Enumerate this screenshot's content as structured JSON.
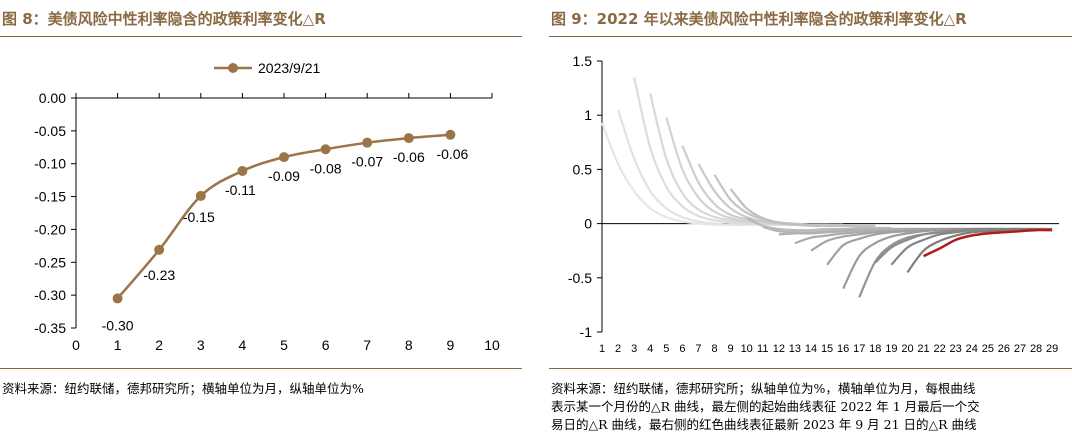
{
  "left": {
    "title": "图 8：美债风险中性利率隐含的政策利率变化△R",
    "source": "资料来源：纽约联储，德邦研究所；横轴单位为月，纵轴单位为%",
    "accent_color": "#8a6a43",
    "line_color": "#9b7448",
    "chart_data": {
      "type": "line",
      "title": "",
      "xlabel": "",
      "ylabel": "",
      "x": [
        1,
        2,
        3,
        4,
        5,
        6,
        7,
        8,
        9
      ],
      "xlim": [
        0,
        10
      ],
      "ylim": [
        -0.35,
        0.0
      ],
      "xticks": [
        "0",
        "1",
        "2",
        "3",
        "4",
        "5",
        "6",
        "7",
        "8",
        "9",
        "10"
      ],
      "yticks": [
        "0.00",
        "-0.05",
        "-0.10",
        "-0.15",
        "-0.20",
        "-0.25",
        "-0.30",
        "-0.35"
      ],
      "legend_position": "top-center",
      "series": [
        {
          "name": "2023/9/21",
          "values": [
            -0.305,
            -0.231,
            -0.149,
            -0.111,
            -0.09,
            -0.078,
            -0.068,
            -0.061,
            -0.056
          ],
          "data_labels": [
            "-0.30",
            "-0.23",
            "-0.15",
            "-0.11",
            "-0.09",
            "-0.08",
            "-0.07",
            "-0.06",
            "-0.06"
          ]
        }
      ],
      "grid": false
    }
  },
  "right": {
    "title": "图 9：2022 年以来美债风险中性利率隐含的政策利率变化△R",
    "source_lines": [
      "资料来源：纽约联储，德邦研究所；纵轴单位为%，横轴单位为月，每根曲线",
      "表示某一个月份的△R 曲线，最左侧的起始曲线表征 2022 年 1 月最后一个交",
      "易日的△R 曲线，最右侧的红色曲线表征最新 2023 年 9 月 21 日的△R 曲线"
    ],
    "highlight_color": "#b01c1c",
    "chart_data": {
      "type": "line",
      "title": "",
      "xlabel": "",
      "ylabel": "",
      "xlim": [
        1,
        29
      ],
      "ylim": [
        -1,
        1.5
      ],
      "xticks": [
        "1",
        "2",
        "3",
        "4",
        "5",
        "6",
        "7",
        "8",
        "9",
        "10",
        "11",
        "12",
        "13",
        "14",
        "15",
        "16",
        "17",
        "18",
        "19",
        "20",
        "21",
        "22",
        "23",
        "24",
        "25",
        "26",
        "27",
        "28",
        "29"
      ],
      "yticks": [
        "1.5",
        "1",
        "0.5",
        "0",
        "-0.5",
        "-1"
      ],
      "grid": false,
      "legend_position": "none",
      "series": [
        {
          "start": 1,
          "values": [
            0.93,
            0.55,
            0.3,
            0.14,
            0.06,
            0.02,
            0.0,
            -0.01,
            -0.01,
            -0.01
          ],
          "color": "#e6e6e6"
        },
        {
          "start": 2,
          "values": [
            1.05,
            0.6,
            0.3,
            0.14,
            0.06,
            0.02,
            0.0,
            -0.01,
            -0.01,
            -0.01
          ],
          "color": "#e2e2e2"
        },
        {
          "start": 3,
          "values": [
            1.35,
            0.7,
            0.34,
            0.16,
            0.07,
            0.03,
            0.01,
            0.0,
            -0.01,
            -0.01
          ],
          "color": "#dddddd"
        },
        {
          "start": 4,
          "values": [
            1.2,
            0.6,
            0.28,
            0.13,
            0.06,
            0.03,
            0.01,
            0.0,
            -0.01,
            -0.01
          ],
          "color": "#d8d8d8"
        },
        {
          "start": 5,
          "values": [
            0.98,
            0.5,
            0.24,
            0.11,
            0.05,
            0.02,
            0.01,
            0.0,
            -0.01,
            -0.01
          ],
          "color": "#d3d3d3"
        },
        {
          "start": 6,
          "values": [
            0.72,
            0.38,
            0.18,
            0.08,
            0.04,
            0.02,
            0.0,
            -0.01,
            -0.01,
            -0.01
          ],
          "color": "#cecece"
        },
        {
          "start": 7,
          "values": [
            0.55,
            0.3,
            0.14,
            0.06,
            0.02,
            0.0,
            -0.01,
            -0.01,
            -0.01,
            -0.01
          ],
          "color": "#c9c9c9"
        },
        {
          "start": 8,
          "values": [
            0.45,
            0.22,
            0.1,
            0.04,
            0.01,
            0.0,
            -0.01,
            -0.02,
            -0.02,
            -0.02
          ],
          "color": "#c4c4c4"
        },
        {
          "start": 9,
          "values": [
            0.32,
            0.14,
            0.05,
            0.01,
            -0.01,
            -0.02,
            -0.02,
            -0.02,
            -0.02,
            -0.02
          ],
          "color": "#bfbfbf"
        },
        {
          "start": 10,
          "values": [
            0.05,
            -0.02,
            -0.05,
            -0.06,
            -0.06,
            -0.05,
            -0.05,
            -0.04,
            -0.04,
            -0.04
          ],
          "color": "#bababa"
        },
        {
          "start": 11,
          "values": [
            -0.03,
            -0.07,
            -0.08,
            -0.08,
            -0.07,
            -0.06,
            -0.06,
            -0.05,
            -0.05,
            -0.05
          ],
          "color": "#b5b5b5"
        },
        {
          "start": 12,
          "values": [
            -0.1,
            -0.09,
            -0.09,
            -0.08,
            -0.07,
            -0.06,
            -0.06,
            -0.05,
            -0.05,
            -0.05
          ],
          "color": "#b0b0b0"
        },
        {
          "start": 13,
          "values": [
            -0.18,
            -0.13,
            -0.11,
            -0.09,
            -0.08,
            -0.07,
            -0.06,
            -0.05,
            -0.05,
            -0.05
          ],
          "color": "#ababab"
        },
        {
          "start": 14,
          "values": [
            -0.25,
            -0.16,
            -0.12,
            -0.1,
            -0.08,
            -0.07,
            -0.06,
            -0.05,
            -0.05,
            -0.05
          ],
          "color": "#a6a6a6"
        },
        {
          "start": 15,
          "values": [
            -0.38,
            -0.2,
            -0.14,
            -0.1,
            -0.08,
            -0.07,
            -0.06,
            -0.05,
            -0.05,
            -0.05
          ],
          "color": "#a0a0a0"
        },
        {
          "start": 16,
          "values": [
            -0.6,
            -0.3,
            -0.18,
            -0.12,
            -0.09,
            -0.07,
            -0.06,
            -0.05,
            -0.05,
            -0.05
          ],
          "color": "#9a9a9a"
        },
        {
          "start": 17,
          "values": [
            -0.68,
            -0.35,
            -0.2,
            -0.13,
            -0.1,
            -0.08,
            -0.06,
            -0.05,
            -0.05,
            -0.05
          ],
          "color": "#939393"
        },
        {
          "start": 18,
          "values": [
            -0.36,
            -0.22,
            -0.15,
            -0.1,
            -0.08,
            -0.06,
            -0.05,
            -0.05,
            -0.05,
            -0.05
          ],
          "color": "#8c8c8c"
        },
        {
          "start": 19,
          "values": [
            -0.38,
            -0.22,
            -0.15,
            -0.1,
            -0.08,
            -0.06,
            -0.05,
            -0.05,
            -0.05,
            -0.05
          ],
          "color": "#858585"
        },
        {
          "start": 20,
          "values": [
            -0.45,
            -0.25,
            -0.16,
            -0.11,
            -0.08,
            -0.07,
            -0.06,
            -0.05,
            -0.05,
            -0.05
          ],
          "color": "#7e7e7e"
        },
        {
          "start": 21,
          "values": [
            -0.3,
            -0.23,
            -0.15,
            -0.11,
            -0.09,
            -0.08,
            -0.07,
            -0.06,
            -0.06
          ],
          "color": "#b01c1c"
        }
      ]
    }
  }
}
